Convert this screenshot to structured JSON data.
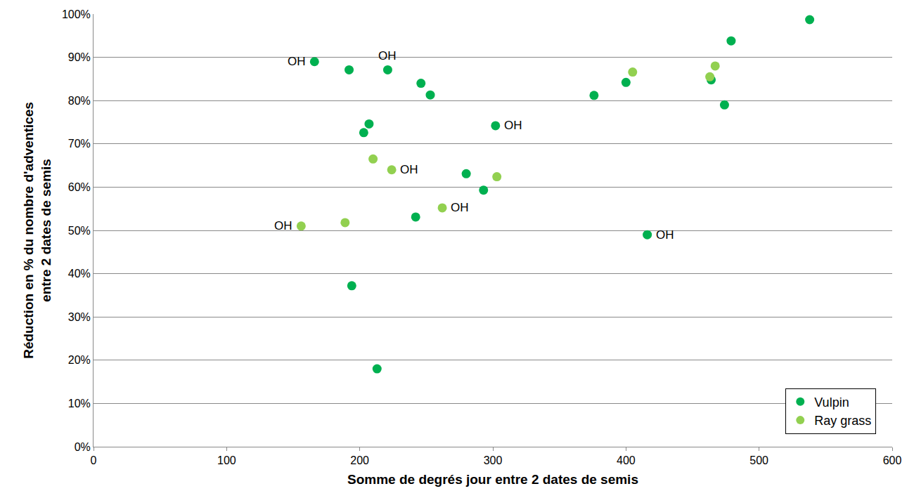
{
  "chart_data": {
    "type": "scatter",
    "x_label": "Somme de degrés jour entre 2 dates de semis",
    "y_label": [
      "Réduction en % du nombre d'adventices",
      "entre 2 dates de semis"
    ],
    "xlim": [
      0,
      600
    ],
    "xticks": [
      0,
      100,
      200,
      300,
      400,
      500,
      600
    ],
    "ylim": [
      0,
      100
    ],
    "yticks": [
      {
        "value": 0,
        "label": "0%"
      },
      {
        "value": 10,
        "label": "10%"
      },
      {
        "value": 20,
        "label": "20%"
      },
      {
        "value": 30,
        "label": "30%"
      },
      {
        "value": 40,
        "label": "40%"
      },
      {
        "value": 50,
        "label": "50%"
      },
      {
        "value": 60,
        "label": "60%"
      },
      {
        "value": 70,
        "label": "70%"
      },
      {
        "value": 80,
        "label": "80%"
      },
      {
        "value": 90,
        "label": "90%"
      },
      {
        "value": 100,
        "label": "100%"
      }
    ],
    "grid": "y",
    "legend": "lower right",
    "marker": "circle",
    "series": [
      {
        "name": "Vulpin",
        "color": "#00B050",
        "x": [
          166,
          192,
          221,
          246,
          253,
          207,
          203,
          302,
          280,
          293,
          242,
          416,
          194,
          213,
          376,
          400,
          464,
          474,
          479,
          538
        ],
        "values": [
          89.0,
          87.1,
          87.1,
          84.0,
          81.3,
          74.6,
          72.6,
          74.2,
          63.1,
          59.3,
          53.1,
          49.0,
          37.2,
          18.0,
          81.2,
          84.2,
          84.8,
          79.0,
          93.8,
          98.7
        ]
      },
      {
        "name": "Ray grass",
        "color": "#92D050",
        "x": [
          156,
          189,
          210,
          224,
          262,
          303,
          405,
          463,
          467
        ],
        "values": [
          51.0,
          51.8,
          66.5,
          64.0,
          55.2,
          62.4,
          86.6,
          85.5,
          88.0
        ]
      }
    ],
    "annotations": [
      {
        "text": "OH",
        "x": 166,
        "y": 89.0,
        "position": "left"
      },
      {
        "text": "OH",
        "x": 221,
        "y": 87.1,
        "position": "above"
      },
      {
        "text": "OH",
        "x": 302,
        "y": 74.2,
        "position": "right"
      },
      {
        "text": "OH",
        "x": 224,
        "y": 64.0,
        "position": "right"
      },
      {
        "text": "OH",
        "x": 262,
        "y": 55.2,
        "position": "right"
      },
      {
        "text": "OH",
        "x": 156,
        "y": 51.0,
        "position": "left"
      },
      {
        "text": "OH",
        "x": 416,
        "y": 49.0,
        "position": "right"
      }
    ]
  }
}
